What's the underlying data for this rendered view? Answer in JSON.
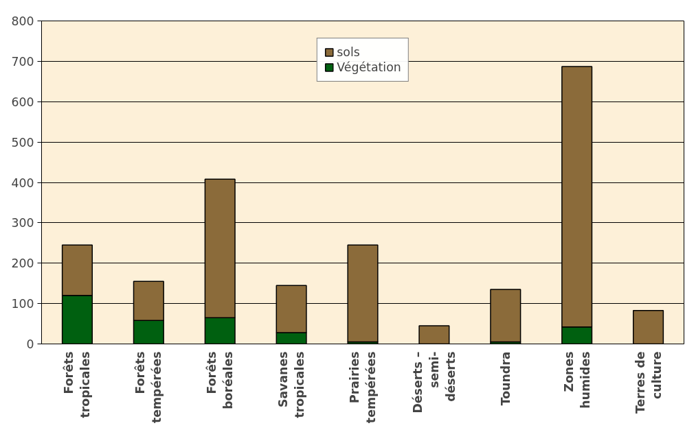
{
  "chart_data": {
    "type": "bar",
    "stacked": true,
    "categories": [
      "Forêts tropicales",
      "Forêts tempérées",
      "Forêts boréales",
      "Savanes tropicales",
      "Prairies tempérées",
      "Déserts – semi-déserts",
      "Toundra",
      "Zones humides",
      "Terres de culture"
    ],
    "series": [
      {
        "name": "Végétation",
        "color": "#006010",
        "values": [
          120,
          58,
          65,
          28,
          5,
          null,
          5,
          42,
          null
        ]
      },
      {
        "name": "sols",
        "color": "#8b6b3a",
        "values": [
          125,
          97,
          343,
          117,
          240,
          45,
          130,
          645,
          83
        ]
      }
    ],
    "ylim": [
      0,
      800
    ],
    "yticks": [
      0,
      100,
      200,
      300,
      400,
      500,
      600,
      700,
      800
    ],
    "grid": "y",
    "legend": "top"
  }
}
